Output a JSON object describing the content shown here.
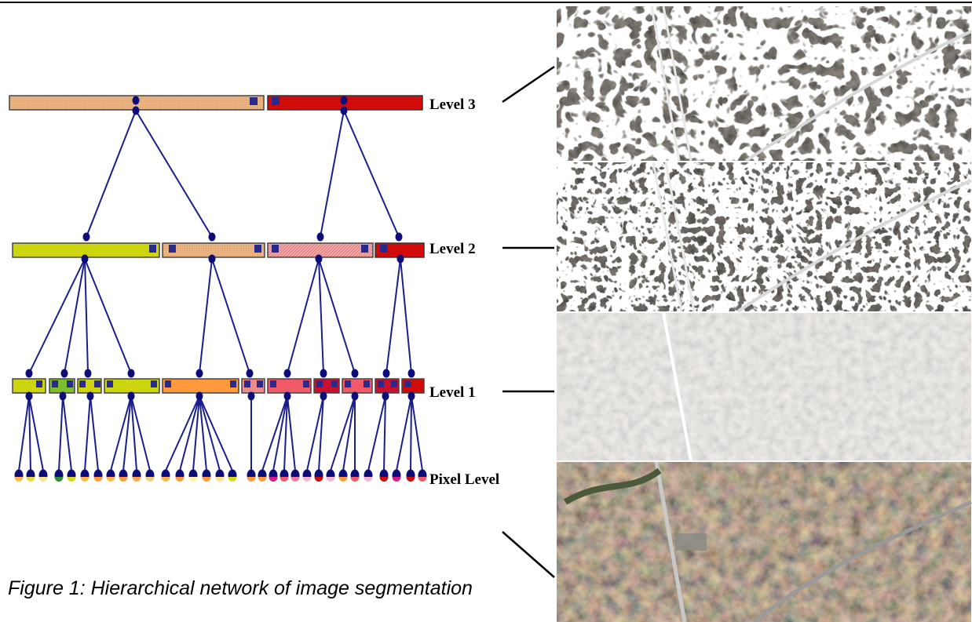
{
  "labels": {
    "level3": "Level 3",
    "level2": "Level 2",
    "level1": "Level 1",
    "pixel": "Pixel Level"
  },
  "caption": "Figure 1: Hierarchical network of image segmentation",
  "colors": {
    "link": "#1a1f8c",
    "node": "#0d0d7a",
    "tan": "#f3c18c",
    "red": "#d10a0a",
    "yellow_green": "#cdd50f",
    "salmon_hatched": "#f0a0a0",
    "orange": "#ff9a3c",
    "pink_red": "#f25a6a",
    "dark_red": "#c8102e",
    "navy_block": "#2a2a8c"
  },
  "images": [
    {
      "name": "segmentation-level-3-image",
      "style": "coarse-outlines"
    },
    {
      "name": "segmentation-level-2-image",
      "style": "medium-outlines"
    },
    {
      "name": "segmentation-level-1-image",
      "style": "fine-outlines"
    },
    {
      "name": "satellite-pixel-image",
      "style": "satellite-photo"
    }
  ]
}
